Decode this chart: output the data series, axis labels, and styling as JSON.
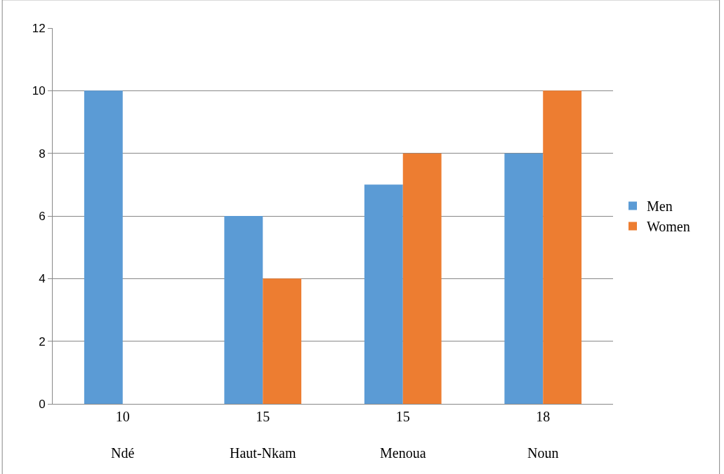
{
  "chart_data": {
    "type": "bar",
    "categories": [
      "10\nNdé",
      "15\nHaut-Nkam",
      "15\nMenoua",
      "18\nNoun"
    ],
    "series": [
      {
        "name": "Men",
        "color": "#5b9bd5",
        "values": [
          10,
          6,
          7,
          8
        ]
      },
      {
        "name": "Women",
        "color": "#ed7d31",
        "values": [
          0,
          4,
          8,
          10
        ]
      }
    ],
    "ylim": [
      0,
      12
    ],
    "yticks": [
      0,
      2,
      4,
      6,
      8,
      10,
      12
    ],
    "grid": "y",
    "legend": "right"
  }
}
